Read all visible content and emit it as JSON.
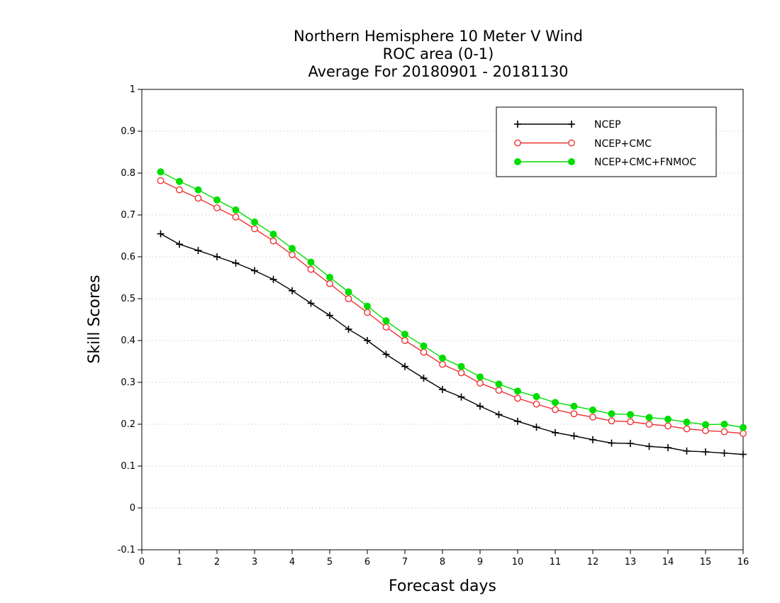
{
  "chart_data": {
    "type": "line",
    "title_lines": [
      "Northern Hemisphere 10 Meter V Wind",
      "ROC area (0-1)",
      "Average For 20180901 - 20181130"
    ],
    "xlabel": "Forecast days",
    "ylabel": "Skill Scores",
    "xlim": [
      0,
      16
    ],
    "ylim": [
      -0.1,
      1
    ],
    "x_ticks": [
      0,
      1,
      2,
      3,
      4,
      5,
      6,
      7,
      8,
      9,
      10,
      11,
      12,
      13,
      14,
      15,
      16
    ],
    "y_ticks": [
      -0.1,
      0,
      0.1,
      0.2,
      0.3,
      0.4,
      0.5,
      0.6,
      0.7,
      0.8,
      0.9,
      1
    ],
    "y_tick_labels": [
      "-0.1",
      "0",
      "0.1",
      "0.2",
      "0.3",
      "0.4",
      "0.5",
      "0.6",
      "0.7",
      "0.8",
      "0.9",
      "1"
    ],
    "grid": "horizontal-dotted",
    "legend_position": "top-right",
    "x": [
      0.5,
      1,
      1.5,
      2,
      2.5,
      3,
      3.5,
      4,
      4.5,
      5,
      5.5,
      6,
      6.5,
      7,
      7.5,
      8,
      8.5,
      9,
      9.5,
      10,
      10.5,
      11,
      11.5,
      12,
      12.5,
      13,
      13.5,
      14,
      14.5,
      15,
      15.5,
      16
    ],
    "series": [
      {
        "name": "NCEP",
        "color": "#000000",
        "marker": "plus",
        "values": [
          0.655,
          0.63,
          0.615,
          0.6,
          0.585,
          0.567,
          0.546,
          0.519,
          0.489,
          0.46,
          0.427,
          0.4,
          0.367,
          0.338,
          0.31,
          0.283,
          0.265,
          0.243,
          0.223,
          0.207,
          0.193,
          0.18,
          0.172,
          0.163,
          0.155,
          0.154,
          0.147,
          0.144,
          0.136,
          0.134,
          0.131,
          0.128
        ]
      },
      {
        "name": "NCEP+CMC",
        "color": "#ee3333",
        "marker": "open-circle",
        "values": [
          0.782,
          0.76,
          0.74,
          0.717,
          0.695,
          0.667,
          0.638,
          0.605,
          0.57,
          0.536,
          0.5,
          0.467,
          0.432,
          0.4,
          0.372,
          0.343,
          0.323,
          0.298,
          0.281,
          0.262,
          0.248,
          0.235,
          0.225,
          0.217,
          0.208,
          0.206,
          0.2,
          0.196,
          0.189,
          0.185,
          0.182,
          0.178
        ]
      },
      {
        "name": "NCEP+CMC+FNMOC",
        "color": "#00dd00",
        "marker": "filled-circle",
        "values": [
          0.803,
          0.78,
          0.76,
          0.736,
          0.712,
          0.683,
          0.654,
          0.62,
          0.587,
          0.551,
          0.516,
          0.482,
          0.447,
          0.415,
          0.387,
          0.358,
          0.338,
          0.313,
          0.296,
          0.279,
          0.266,
          0.252,
          0.243,
          0.234,
          0.225,
          0.223,
          0.216,
          0.212,
          0.205,
          0.199,
          0.2,
          0.192
        ]
      }
    ]
  }
}
